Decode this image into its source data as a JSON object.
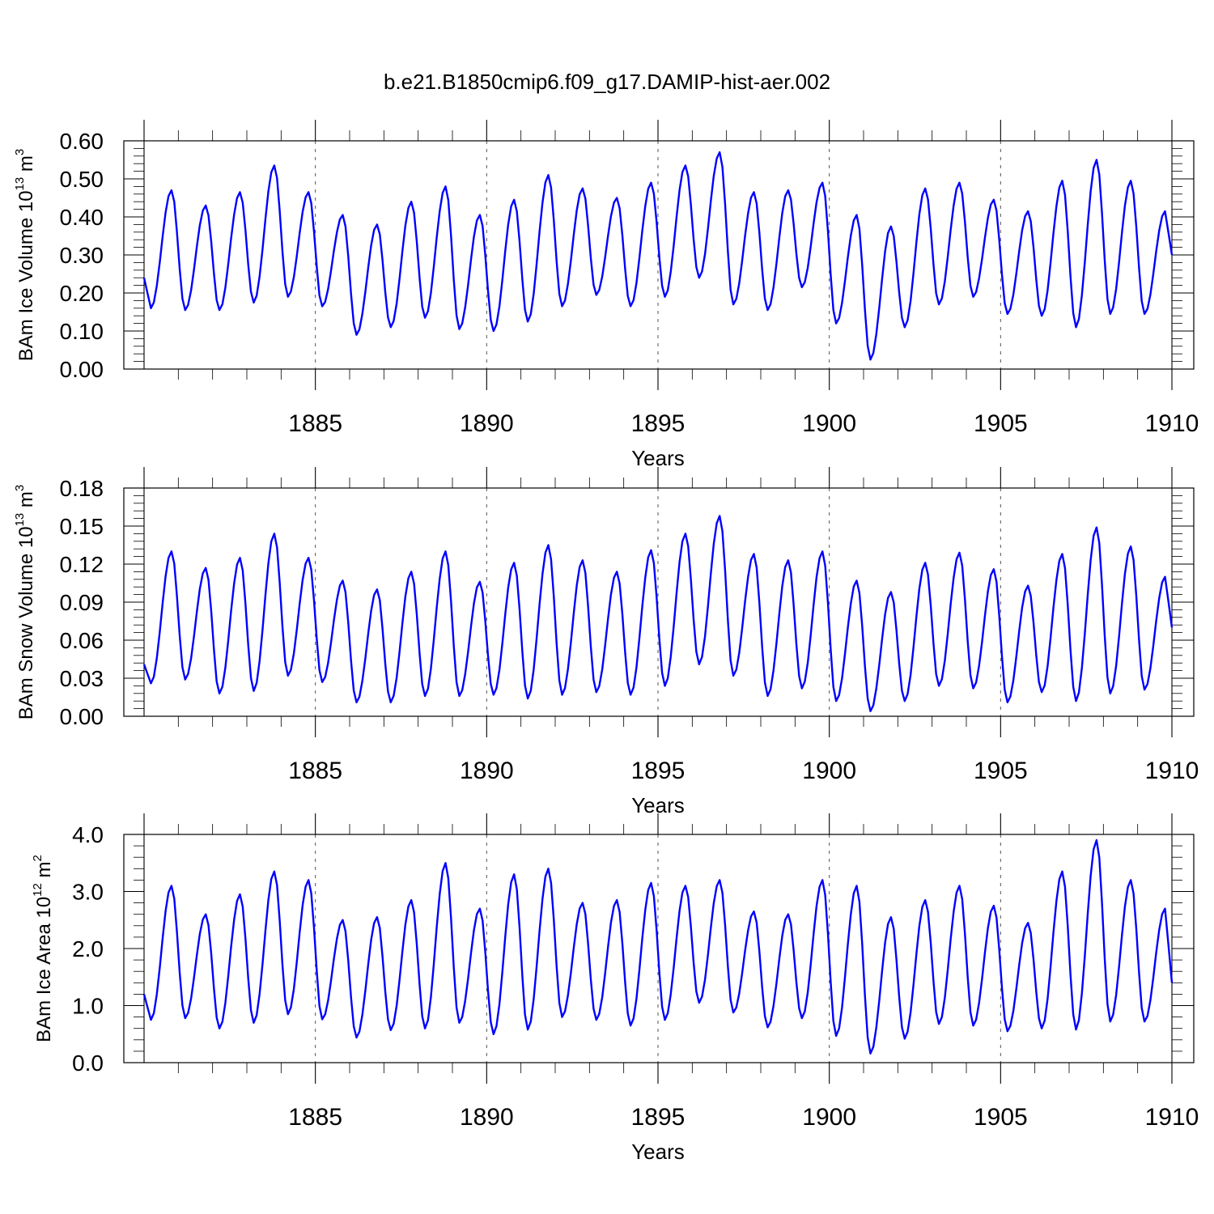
{
  "figure": {
    "title": "b.e21.B1850cmip6.f09_g17.DAMIP-hist-aer.002"
  },
  "chart_data": [
    {
      "type": "line",
      "ylabel": "BAm Ice Volume 10",
      "ylabel_exp": "13",
      "ylabel_unit": " m",
      "ylabel_unit_exp": "3",
      "xlabel": "Years",
      "xlim": [
        1880,
        1910
      ],
      "ylim": [
        0,
        0.6
      ],
      "xticks": [
        1885,
        1890,
        1895,
        1900,
        1905,
        1910
      ],
      "xtick_labels": [
        "1885",
        "1890",
        "1895",
        "1900",
        "1905",
        "1910"
      ],
      "yticks": [
        0,
        0.1,
        0.2,
        0.3,
        0.4,
        0.5,
        0.6
      ],
      "ytick_labels": [
        "0.00",
        "0.10",
        "0.20",
        "0.30",
        "0.40",
        "0.50",
        "0.60"
      ],
      "grid": "dashed vertical at labeled years",
      "color": "#0000ff",
      "series": [
        {
          "peaks": [
            [
              1880.0,
              0.24
            ],
            [
              1880.8,
              0.47
            ],
            [
              1881.8,
              0.43
            ],
            [
              1882.8,
              0.465
            ],
            [
              1883.8,
              0.535
            ],
            [
              1884.8,
              0.465
            ],
            [
              1885.8,
              0.405
            ],
            [
              1886.8,
              0.38
            ],
            [
              1887.8,
              0.44
            ],
            [
              1888.8,
              0.48
            ],
            [
              1889.8,
              0.405
            ],
            [
              1890.8,
              0.445
            ],
            [
              1891.8,
              0.51
            ],
            [
              1892.8,
              0.475
            ],
            [
              1893.8,
              0.45
            ],
            [
              1894.8,
              0.49
            ],
            [
              1895.8,
              0.535
            ],
            [
              1896.8,
              0.57
            ],
            [
              1897.8,
              0.465
            ],
            [
              1898.8,
              0.47
            ],
            [
              1899.8,
              0.49
            ],
            [
              1900.8,
              0.405
            ],
            [
              1901.8,
              0.375
            ],
            [
              1902.8,
              0.475
            ],
            [
              1903.8,
              0.49
            ],
            [
              1904.8,
              0.445
            ],
            [
              1905.8,
              0.415
            ],
            [
              1906.8,
              0.495
            ],
            [
              1907.8,
              0.55
            ],
            [
              1908.8,
              0.495
            ],
            [
              1909.8,
              0.415
            ]
          ],
          "troughs": [
            [
              1880.2,
              0.16
            ],
            [
              1881.2,
              0.155
            ],
            [
              1882.2,
              0.155
            ],
            [
              1883.2,
              0.175
            ],
            [
              1884.2,
              0.19
            ],
            [
              1885.2,
              0.165
            ],
            [
              1886.2,
              0.09
            ],
            [
              1887.2,
              0.11
            ],
            [
              1888.2,
              0.135
            ],
            [
              1889.2,
              0.105
            ],
            [
              1890.2,
              0.1
            ],
            [
              1891.2,
              0.125
            ],
            [
              1892.2,
              0.165
            ],
            [
              1893.2,
              0.195
            ],
            [
              1894.2,
              0.165
            ],
            [
              1895.2,
              0.19
            ],
            [
              1896.2,
              0.24
            ],
            [
              1897.2,
              0.17
            ],
            [
              1898.2,
              0.155
            ],
            [
              1899.2,
              0.215
            ],
            [
              1900.2,
              0.12
            ],
            [
              1901.2,
              0.025
            ],
            [
              1902.2,
              0.11
            ],
            [
              1903.2,
              0.17
            ],
            [
              1904.2,
              0.19
            ],
            [
              1905.2,
              0.145
            ],
            [
              1906.2,
              0.14
            ],
            [
              1907.2,
              0.11
            ],
            [
              1908.2,
              0.145
            ],
            [
              1909.2,
              0.145
            ]
          ],
          "end": [
            1910.0,
            0.3
          ]
        }
      ]
    },
    {
      "type": "line",
      "ylabel": "BAm Snow Volume 10",
      "ylabel_exp": "13",
      "ylabel_unit": " m",
      "ylabel_unit_exp": "3",
      "xlabel": "Years",
      "xlim": [
        1880,
        1910
      ],
      "ylim": [
        0,
        0.18
      ],
      "xticks": [
        1885,
        1890,
        1895,
        1900,
        1905,
        1910
      ],
      "xtick_labels": [
        "1885",
        "1890",
        "1895",
        "1900",
        "1905",
        "1910"
      ],
      "yticks": [
        0,
        0.03,
        0.06,
        0.09,
        0.12,
        0.15,
        0.18
      ],
      "ytick_labels": [
        "0.00",
        "0.03",
        "0.06",
        "0.09",
        "0.12",
        "0.15",
        "0.18"
      ],
      "grid": "dashed vertical at labeled years",
      "color": "#0000ff",
      "series": [
        {
          "peaks": [
            [
              1880.0,
              0.041
            ],
            [
              1880.8,
              0.13
            ],
            [
              1881.8,
              0.117
            ],
            [
              1882.8,
              0.125
            ],
            [
              1883.8,
              0.144
            ],
            [
              1884.8,
              0.125
            ],
            [
              1885.8,
              0.107
            ],
            [
              1886.8,
              0.1
            ],
            [
              1887.8,
              0.114
            ],
            [
              1888.8,
              0.13
            ],
            [
              1889.8,
              0.106
            ],
            [
              1890.8,
              0.121
            ],
            [
              1891.8,
              0.135
            ],
            [
              1892.8,
              0.123
            ],
            [
              1893.8,
              0.114
            ],
            [
              1894.8,
              0.131
            ],
            [
              1895.8,
              0.144
            ],
            [
              1896.8,
              0.158
            ],
            [
              1897.8,
              0.128
            ],
            [
              1898.8,
              0.123
            ],
            [
              1899.8,
              0.13
            ],
            [
              1900.8,
              0.107
            ],
            [
              1901.8,
              0.098
            ],
            [
              1902.8,
              0.121
            ],
            [
              1903.8,
              0.129
            ],
            [
              1904.8,
              0.116
            ],
            [
              1905.8,
              0.103
            ],
            [
              1906.8,
              0.128
            ],
            [
              1907.8,
              0.149
            ],
            [
              1908.8,
              0.134
            ],
            [
              1909.8,
              0.11
            ]
          ],
          "troughs": [
            [
              1880.2,
              0.026
            ],
            [
              1881.2,
              0.029
            ],
            [
              1882.2,
              0.018
            ],
            [
              1883.2,
              0.02
            ],
            [
              1884.2,
              0.032
            ],
            [
              1885.2,
              0.027
            ],
            [
              1886.2,
              0.011
            ],
            [
              1887.2,
              0.011
            ],
            [
              1888.2,
              0.016
            ],
            [
              1889.2,
              0.016
            ],
            [
              1890.2,
              0.017
            ],
            [
              1891.2,
              0.014
            ],
            [
              1892.2,
              0.017
            ],
            [
              1893.2,
              0.019
            ],
            [
              1894.2,
              0.017
            ],
            [
              1895.2,
              0.024
            ],
            [
              1896.2,
              0.041
            ],
            [
              1897.2,
              0.032
            ],
            [
              1898.2,
              0.016
            ],
            [
              1899.2,
              0.022
            ],
            [
              1900.2,
              0.012
            ],
            [
              1901.2,
              0.004
            ],
            [
              1902.2,
              0.012
            ],
            [
              1903.2,
              0.024
            ],
            [
              1904.2,
              0.022
            ],
            [
              1905.2,
              0.011
            ],
            [
              1906.2,
              0.019
            ],
            [
              1907.2,
              0.012
            ],
            [
              1908.2,
              0.018
            ],
            [
              1909.2,
              0.021
            ]
          ],
          "end": [
            1910.0,
            0.07
          ]
        }
      ]
    },
    {
      "type": "line",
      "ylabel": "BAm Ice Area 10",
      "ylabel_exp": "12",
      "ylabel_unit": " m",
      "ylabel_unit_exp": "2",
      "xlabel": "Years",
      "xlim": [
        1880,
        1910
      ],
      "ylim": [
        0,
        4.0
      ],
      "xticks": [
        1885,
        1890,
        1895,
        1900,
        1905,
        1910
      ],
      "xtick_labels": [
        "1885",
        "1890",
        "1895",
        "1900",
        "1905",
        "1910"
      ],
      "yticks": [
        0,
        1,
        2,
        3,
        4
      ],
      "ytick_labels": [
        "0.0",
        "1.0",
        "2.0",
        "3.0",
        "4.0"
      ],
      "grid": "dashed vertical at labeled years",
      "color": "#0000ff",
      "series": [
        {
          "peaks": [
            [
              1880.0,
              1.2
            ],
            [
              1880.8,
              3.1
            ],
            [
              1881.8,
              2.6
            ],
            [
              1882.8,
              2.95
            ],
            [
              1883.8,
              3.35
            ],
            [
              1884.8,
              3.2
            ],
            [
              1885.8,
              2.5
            ],
            [
              1886.8,
              2.55
            ],
            [
              1887.8,
              2.85
            ],
            [
              1888.8,
              3.5
            ],
            [
              1889.8,
              2.7
            ],
            [
              1890.8,
              3.3
            ],
            [
              1891.8,
              3.4
            ],
            [
              1892.8,
              2.8
            ],
            [
              1893.8,
              2.85
            ],
            [
              1894.8,
              3.15
            ],
            [
              1895.8,
              3.1
            ],
            [
              1896.8,
              3.2
            ],
            [
              1897.8,
              2.65
            ],
            [
              1898.8,
              2.6
            ],
            [
              1899.8,
              3.2
            ],
            [
              1900.8,
              3.1
            ],
            [
              1901.8,
              2.55
            ],
            [
              1902.8,
              2.85
            ],
            [
              1903.8,
              3.1
            ],
            [
              1904.8,
              2.75
            ],
            [
              1905.8,
              2.45
            ],
            [
              1906.8,
              3.35
            ],
            [
              1907.8,
              3.9
            ],
            [
              1908.8,
              3.2
            ],
            [
              1909.8,
              2.7
            ]
          ],
          "troughs": [
            [
              1880.2,
              0.75
            ],
            [
              1881.2,
              0.78
            ],
            [
              1882.2,
              0.6
            ],
            [
              1883.2,
              0.7
            ],
            [
              1884.2,
              0.85
            ],
            [
              1885.2,
              0.76
            ],
            [
              1886.2,
              0.44
            ],
            [
              1887.2,
              0.57
            ],
            [
              1888.2,
              0.6
            ],
            [
              1889.2,
              0.7
            ],
            [
              1890.2,
              0.5
            ],
            [
              1891.2,
              0.58
            ],
            [
              1892.2,
              0.8
            ],
            [
              1893.2,
              0.75
            ],
            [
              1894.2,
              0.65
            ],
            [
              1895.2,
              0.75
            ],
            [
              1896.2,
              1.05
            ],
            [
              1897.2,
              0.88
            ],
            [
              1898.2,
              0.62
            ],
            [
              1899.2,
              0.78
            ],
            [
              1900.2,
              0.47
            ],
            [
              1901.2,
              0.16
            ],
            [
              1902.2,
              0.42
            ],
            [
              1903.2,
              0.68
            ],
            [
              1904.2,
              0.65
            ],
            [
              1905.2,
              0.55
            ],
            [
              1906.2,
              0.6
            ],
            [
              1907.2,
              0.58
            ],
            [
              1908.2,
              0.72
            ],
            [
              1909.2,
              0.72
            ]
          ],
          "end": [
            1910.0,
            1.4
          ]
        }
      ]
    }
  ]
}
